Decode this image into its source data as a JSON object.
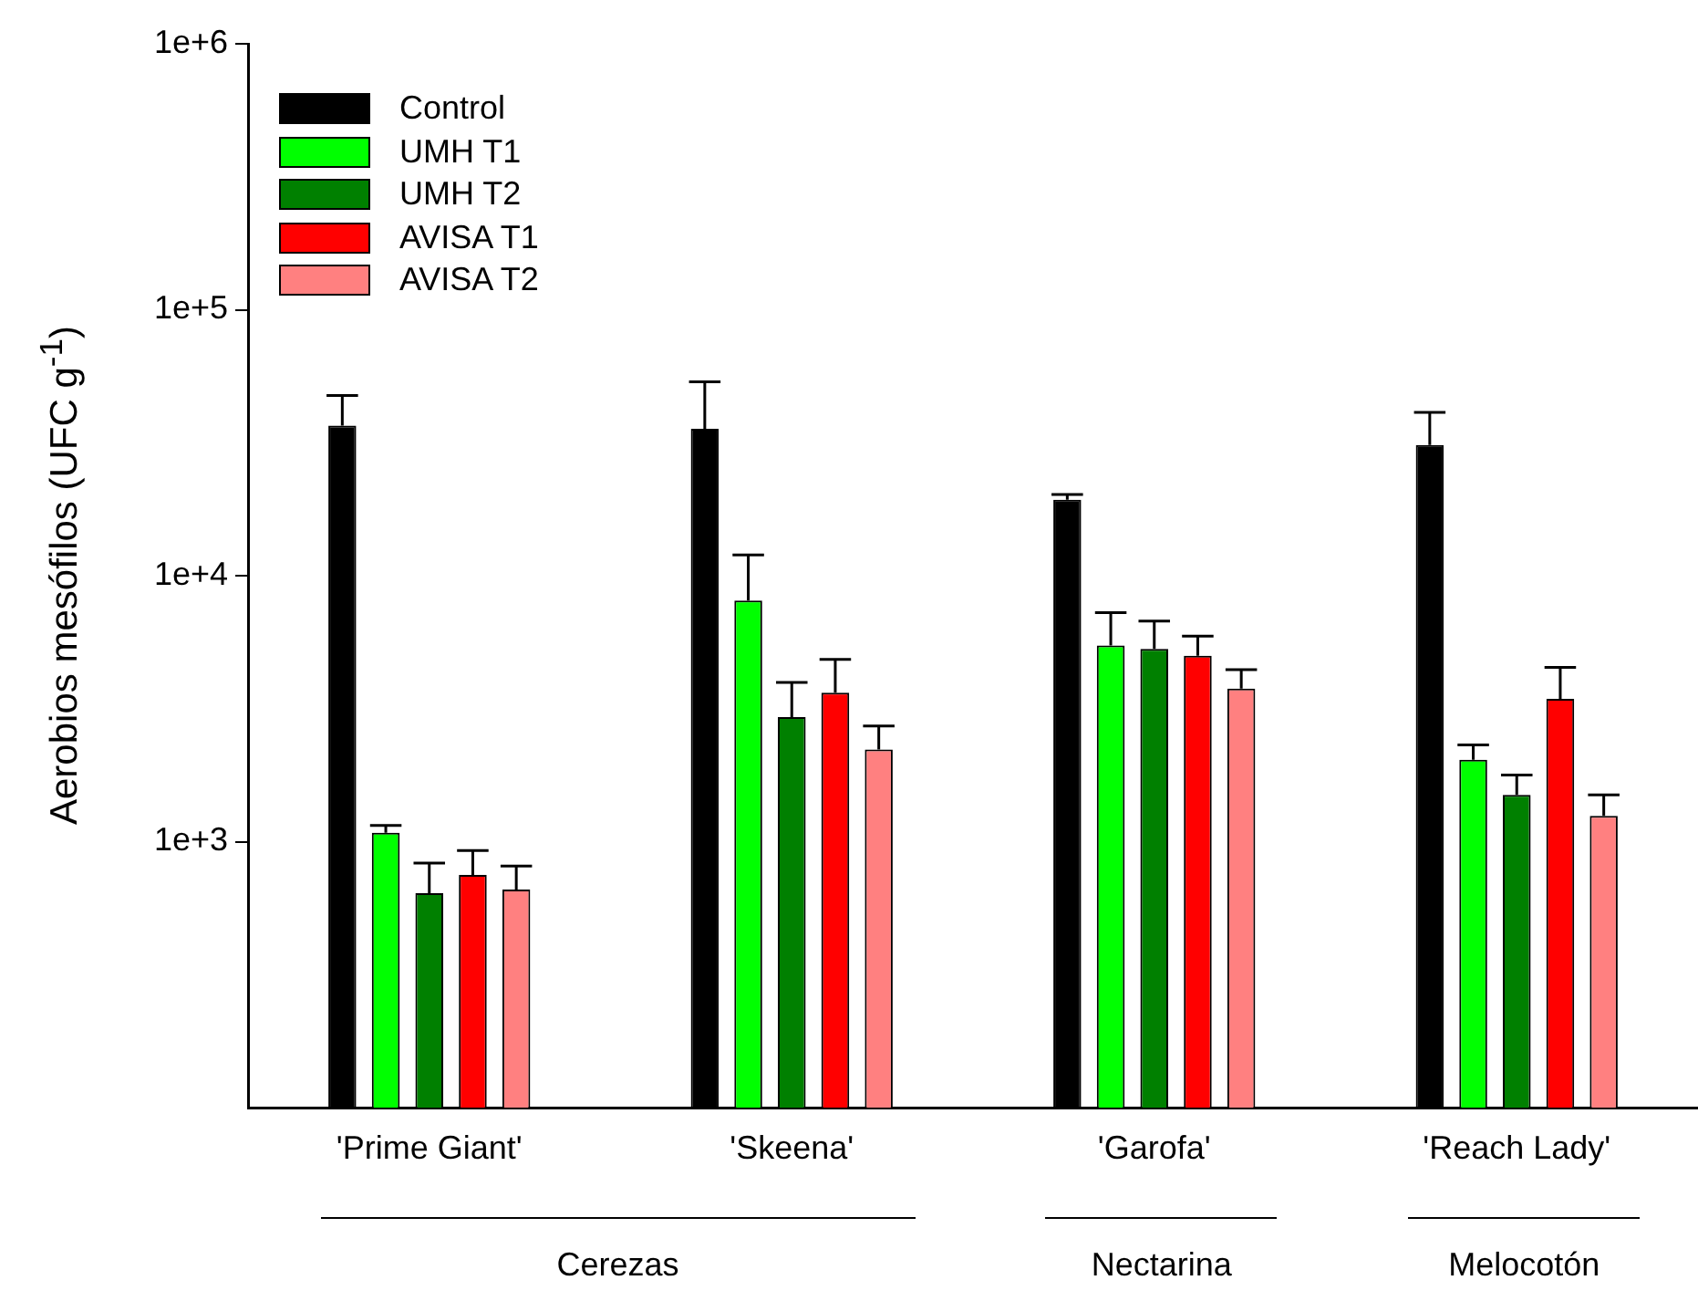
{
  "chart_data": {
    "type": "bar",
    "ylabel": "Aerobios mesófilos (UFC g$^{-1}$)",
    "categories": [
      "'Prime Giant'",
      "'Skeena'",
      "'Garofa'",
      "'Reach Lady'"
    ],
    "series": [
      {
        "name": "Control",
        "color": "#000000",
        "values": [
          36700,
          35700,
          19300,
          31000
        ],
        "errors": [
          [
            36700,
            47600
          ],
          [
            35700,
            53600
          ],
          [
            19300,
            20200
          ],
          [
            31000,
            41100
          ]
        ]
      },
      {
        "name": "UMH T1",
        "color": "#00ff00",
        "values": [
          1080,
          8070,
          5470,
          2030
        ],
        "errors": [
          [
            1080,
            1150
          ],
          [
            8070,
            11960
          ],
          [
            5470,
            7260
          ],
          [
            2030,
            2310
          ]
        ]
      },
      {
        "name": "UMH T2",
        "color": "#008000",
        "values": [
          640,
          2940,
          5300,
          1500
        ],
        "errors": [
          [
            640,
            830
          ],
          [
            2940,
            3970
          ],
          [
            5300,
            6750
          ],
          [
            1500,
            1780
          ]
        ]
      },
      {
        "name": "AVISA T1",
        "color": "#ff0000",
        "values": [
          750,
          3630,
          5000,
          3440
        ],
        "errors": [
          [
            750,
            925
          ],
          [
            3630,
            4840
          ],
          [
            5000,
            5920
          ],
          [
            3440,
            4520
          ]
        ]
      },
      {
        "name": "AVISA T2",
        "color": "#ff8080",
        "values": [
          660,
          2220,
          3760,
          1250
        ],
        "errors": [
          [
            660,
            810
          ],
          [
            2220,
            2720
          ],
          [
            3760,
            4430
          ],
          [
            1250,
            1500
          ]
        ]
      }
    ],
    "log": true,
    "ylim": [
      100,
      1000000
    ],
    "yticks": [
      {
        "value": 1000,
        "label": "1e+3"
      },
      {
        "value": 10000,
        "label": "1e+4"
      },
      {
        "value": 100000,
        "label": "1e+5"
      },
      {
        "value": 1000000,
        "label": "1e+6"
      }
    ],
    "grid": false,
    "legend": "top left",
    "annotations": [
      "Cerezas",
      "Nectarina",
      "Melocotón"
    ]
  }
}
